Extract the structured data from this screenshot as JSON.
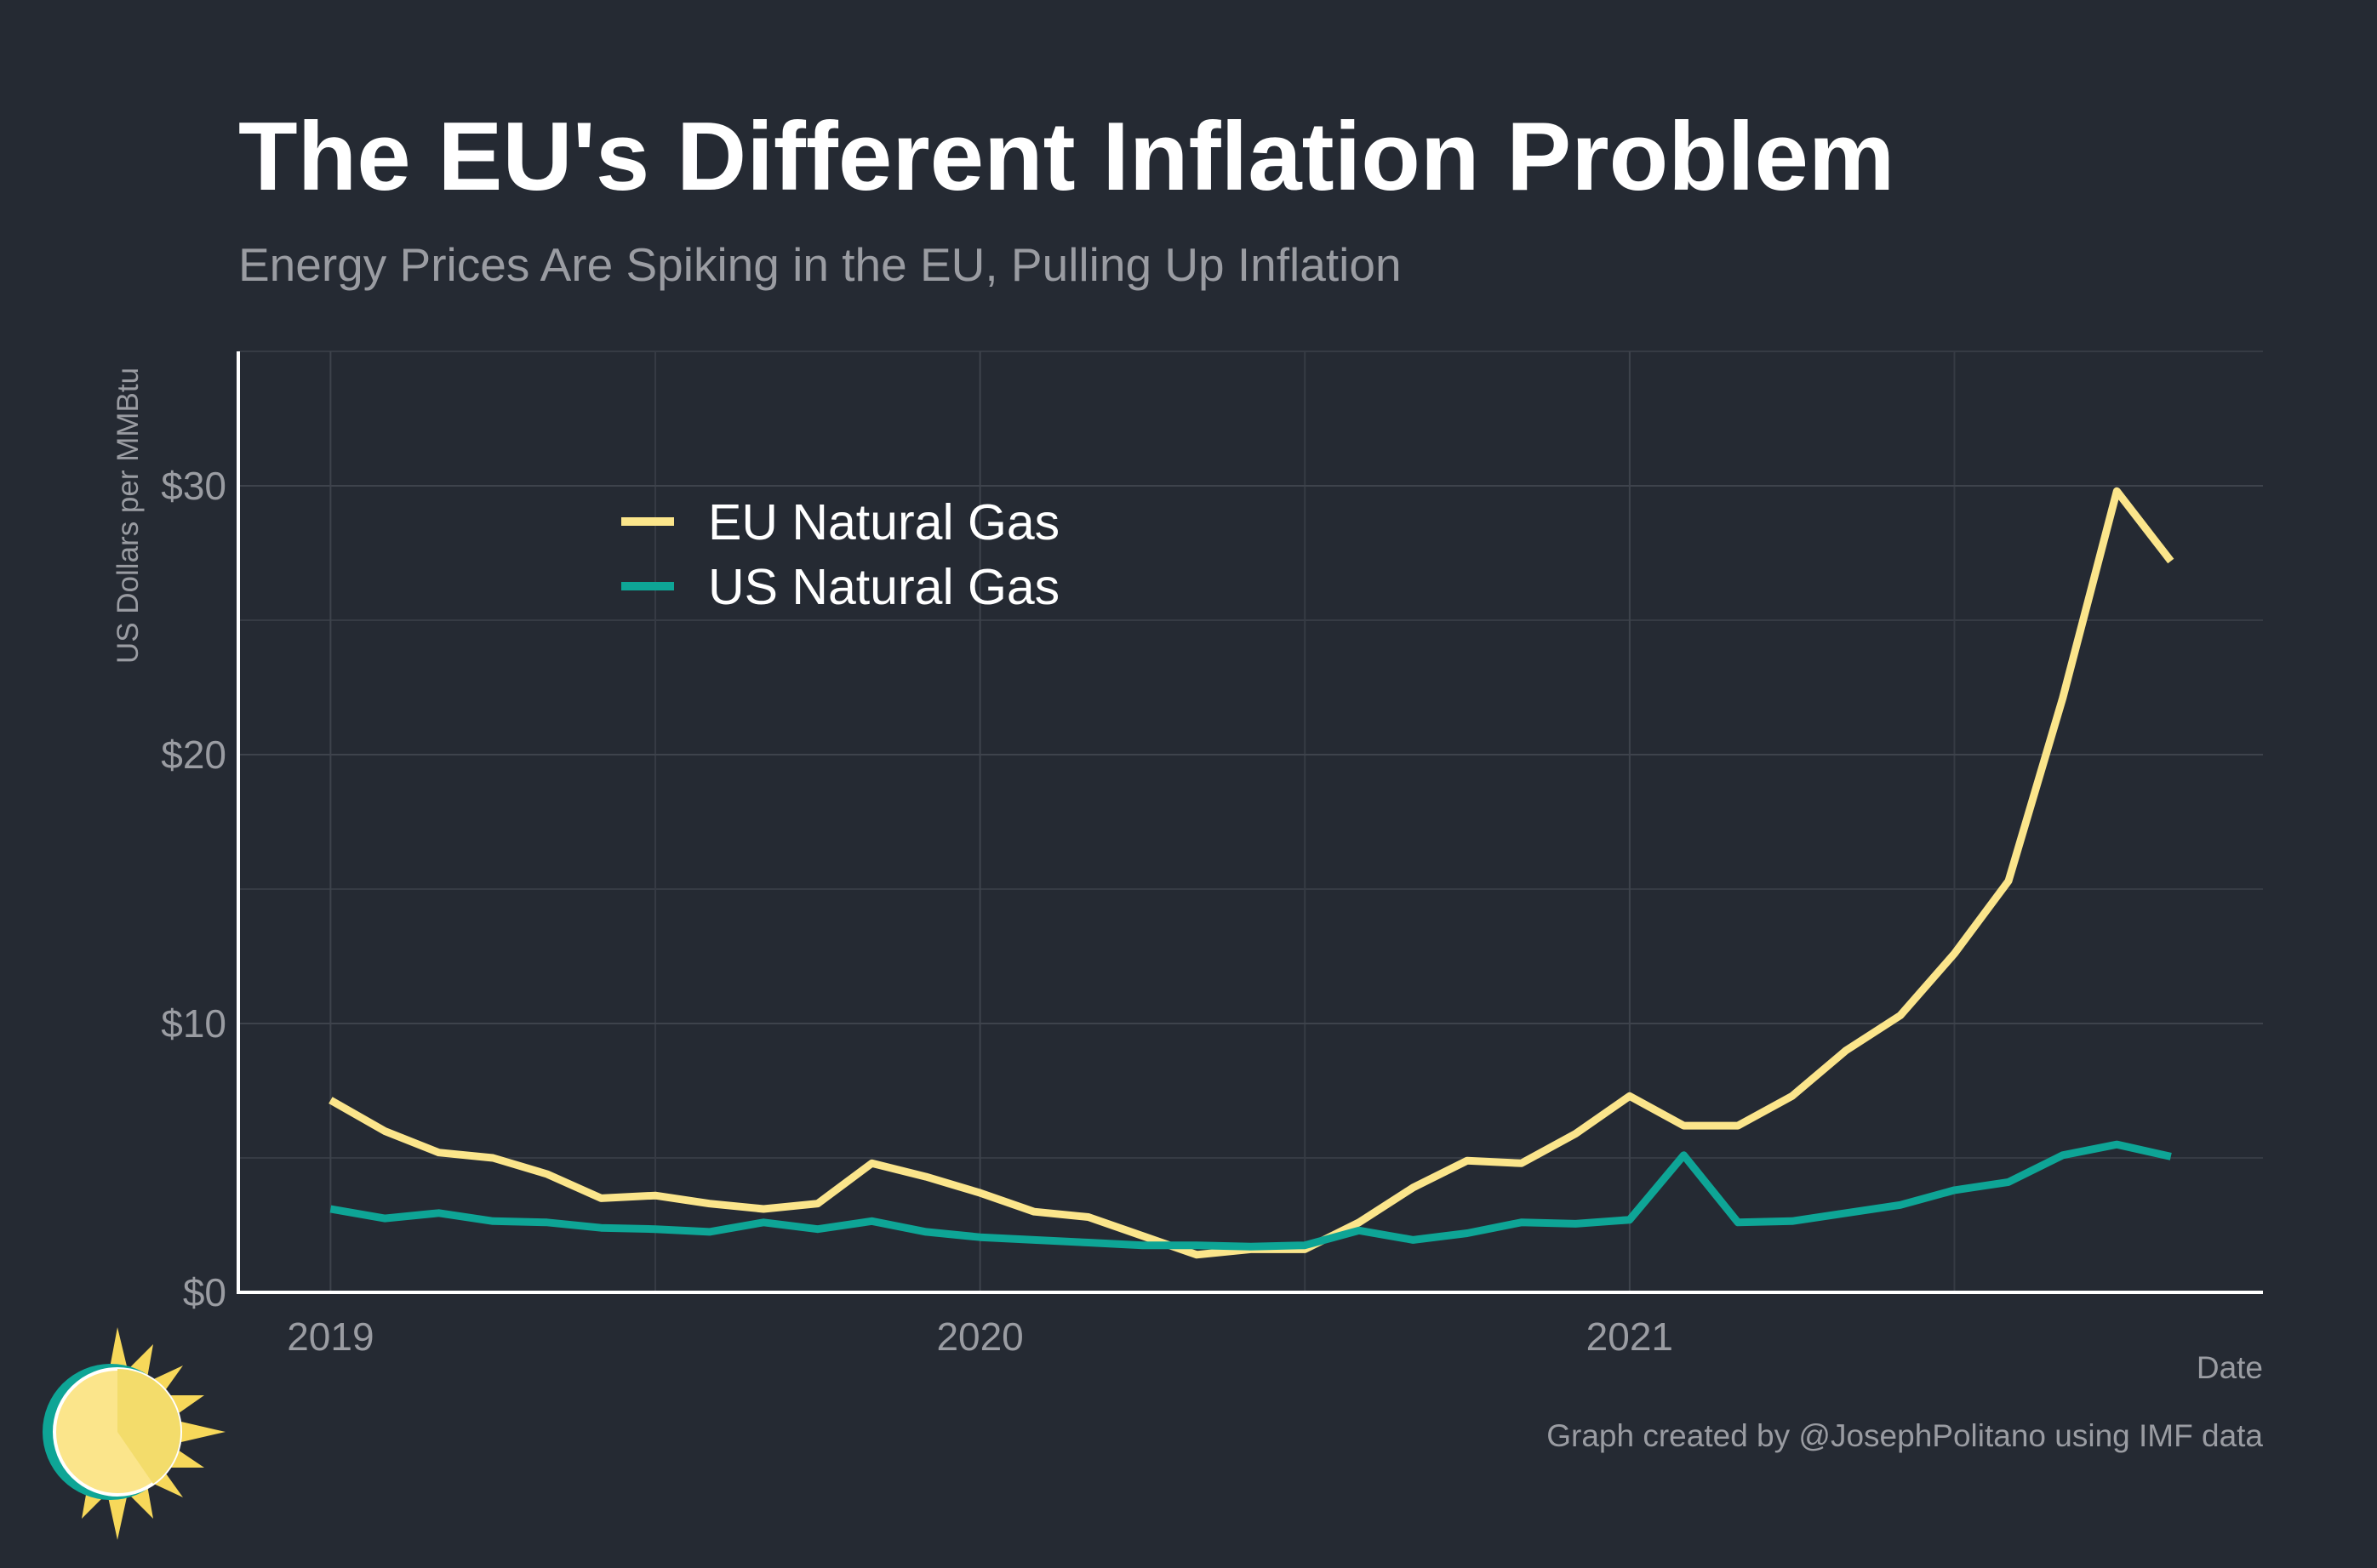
{
  "chart_data": {
    "type": "line",
    "title": "The EU's Different Inflation Problem",
    "subtitle": "Energy Prices Are Spiking in the EU, Pulling Up Inflation",
    "y_label": "US Dollars per MMBtu",
    "x_label": "Date",
    "caption": "Graph created by @JosephPolitano using IMF data",
    "x": [
      2019,
      2019.0833,
      2019.1667,
      2019.25,
      2019.3333,
      2019.4167,
      2019.5,
      2019.5833,
      2019.6667,
      2019.75,
      2019.8333,
      2019.9167,
      2020,
      2020.0833,
      2020.1667,
      2020.25,
      2020.3333,
      2020.4167,
      2020.5,
      2020.5833,
      2020.6667,
      2020.75,
      2020.8333,
      2020.9167,
      2021,
      2021.0833,
      2021.1667,
      2021.25,
      2021.3333,
      2021.4167,
      2021.5,
      2021.5833,
      2021.6667,
      2021.75,
      2021.8333
    ],
    "series": [
      {
        "name": "EU Natural Gas",
        "color": "#fbe58b",
        "values": [
          7.15,
          6.0,
          5.2,
          5.0,
          4.4,
          3.5,
          3.6,
          3.3,
          3.1,
          3.3,
          4.8,
          4.3,
          3.7,
          3.0,
          2.8,
          2.1,
          1.4,
          1.6,
          1.6,
          2.6,
          3.9,
          4.9,
          4.8,
          5.9,
          7.3,
          6.2,
          6.2,
          7.3,
          9.0,
          10.3,
          12.6,
          15.3,
          22.1,
          29.8,
          27.2
        ]
      },
      {
        "name": "US Natural Gas",
        "color": "#0ea596",
        "values": [
          3.1,
          2.75,
          2.95,
          2.65,
          2.6,
          2.4,
          2.35,
          2.25,
          2.6,
          2.35,
          2.65,
          2.25,
          2.05,
          1.95,
          1.85,
          1.75,
          1.75,
          1.7,
          1.75,
          2.3,
          1.95,
          2.2,
          2.6,
          2.55,
          2.7,
          5.1,
          2.6,
          2.65,
          2.95,
          3.25,
          3.8,
          4.1,
          5.1,
          5.5,
          5.05
        ]
      }
    ],
    "xlim": [
      2018.858,
      2021.975
    ],
    "xticks": [
      2019,
      2020,
      2021
    ],
    "xminor": [
      2019.5,
      2020.5,
      2021.5
    ],
    "ylim": [
      0,
      35
    ],
    "yticks": [
      {
        "value": 0,
        "label": "$0"
      },
      {
        "value": 10,
        "label": "$10"
      },
      {
        "value": 20,
        "label": "$20"
      },
      {
        "value": 30,
        "label": "$30"
      }
    ],
    "yminor": [
      5,
      15,
      25,
      35
    ],
    "grid": true,
    "legend": "top-left"
  }
}
